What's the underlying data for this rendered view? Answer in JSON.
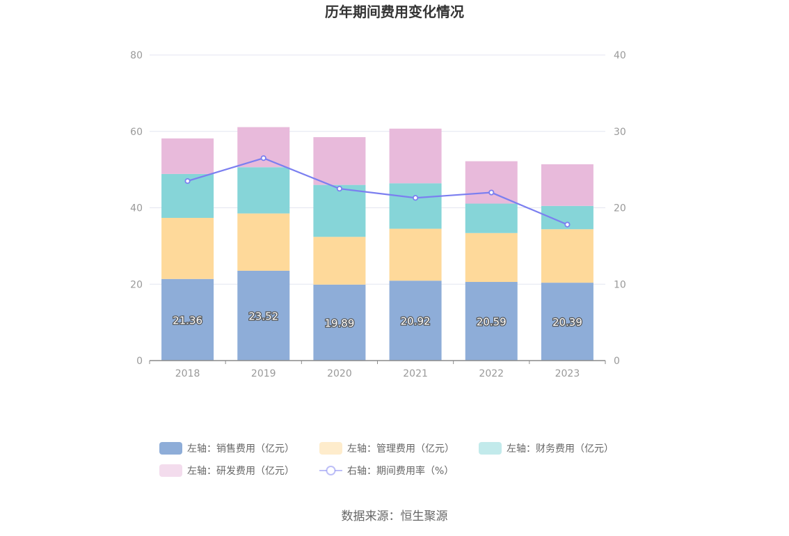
{
  "source_text": "数据来源：恒生聚源",
  "chart_data": {
    "type": "bar",
    "title": "历年期间费用变化情况",
    "categories": [
      "2018",
      "2019",
      "2020",
      "2021",
      "2022",
      "2023"
    ],
    "left_axis": {
      "ylim": [
        0,
        80
      ],
      "ticks": [
        "0",
        "20",
        "40",
        "60",
        "80"
      ]
    },
    "right_axis": {
      "ylim": [
        0,
        40
      ],
      "ticks": [
        "0",
        "10",
        "20",
        "30",
        "40"
      ]
    },
    "grid": true,
    "legend_position": "bottom",
    "series": [
      {
        "name": "左轴：销售费用（亿元）",
        "type": "bar",
        "axis": "left",
        "color": "#8eadd8",
        "values": [
          21.36,
          23.52,
          19.89,
          20.92,
          20.59,
          20.39
        ],
        "show_labels": true
      },
      {
        "name": "左轴：管理费用（亿元）",
        "type": "bar",
        "axis": "left",
        "color": "#fed99a",
        "values": [
          16.0,
          15.0,
          12.5,
          13.6,
          12.8,
          14.0
        ]
      },
      {
        "name": "左轴：财务费用（亿元）",
        "type": "bar",
        "axis": "left",
        "color": "#86d5d8",
        "values": [
          11.5,
          12.1,
          13.6,
          11.9,
          7.7,
          6.1
        ]
      },
      {
        "name": "左轴：研发费用（亿元）",
        "type": "bar",
        "axis": "left",
        "color": "#e8badb",
        "values": [
          9.3,
          10.5,
          12.5,
          14.3,
          11.1,
          10.9
        ]
      },
      {
        "name": "右轴：期间费用率（%）",
        "type": "line",
        "axis": "right",
        "color": "#7b7ff0",
        "values": [
          23.5,
          26.5,
          22.5,
          21.3,
          22.0,
          17.8
        ]
      }
    ]
  }
}
